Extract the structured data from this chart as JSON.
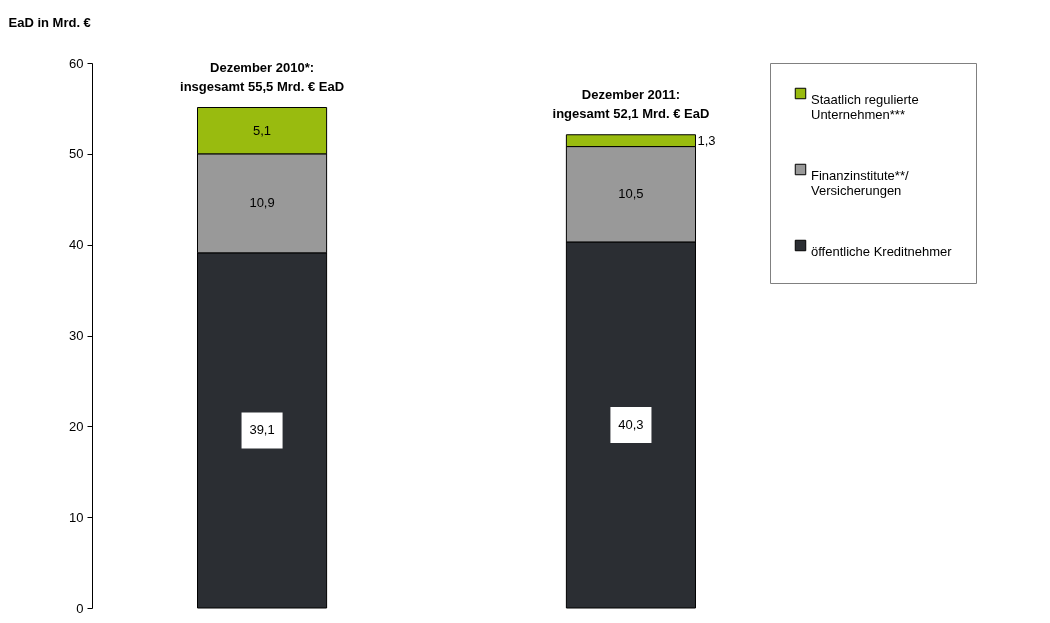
{
  "chart_data": {
    "type": "bar",
    "stacked": true,
    "ylabel": "EaD in Mrd. €",
    "categories": [
      null,
      null
    ],
    "series": [
      {
        "name": "öffentliche Kreditnehmer",
        "color": "#2b2e33",
        "values": [
          39.1,
          40.3
        ],
        "value_labels": [
          "39,1",
          "40,3"
        ]
      },
      {
        "name": "Finanzinstitute**/\nVersicherungen",
        "color": "#999999",
        "values": [
          10.9,
          10.5
        ],
        "value_labels": [
          "10,9",
          "10,5"
        ]
      },
      {
        "name": "Staatlich regulierte\nUnternehmen***",
        "color": "#99bb0f",
        "values": [
          5.1,
          1.3
        ],
        "value_labels": [
          "5,1",
          "1,3"
        ]
      }
    ],
    "totals": [
      "Dezember 2010*:\ninsgesamt 55,5 Mrd. € EaD",
      "Dezember 2011:\ningesamt 52,1 Mrd. € EaD"
    ],
    "ylim": [
      0,
      60
    ],
    "yticks": [
      0,
      10,
      20,
      30,
      40,
      50,
      60
    ],
    "legend": "top right",
    "tick_labels": "y"
  }
}
